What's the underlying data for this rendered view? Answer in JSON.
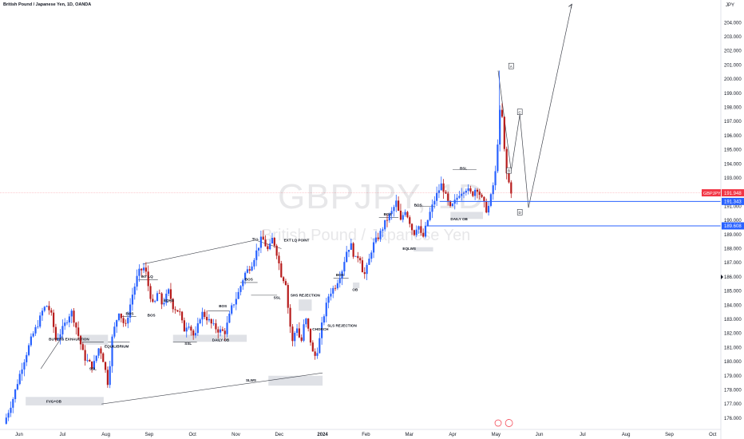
{
  "header": {
    "title": "British Pound / Japanese Yen, 1D, OANDA",
    "currency": "JPY"
  },
  "watermark": {
    "symbol": "GBPJPY, 1D",
    "name": "British Pound / Japanese Yen"
  },
  "colors": {
    "up": "#2962ff",
    "down": "#b71c1c",
    "level": "#2962ff",
    "current": "#f23645",
    "zone": "#d1d4dc",
    "line": "#131722"
  },
  "chart_data": {
    "type": "candlestick",
    "ylim": [
      175.2,
      205.6
    ],
    "yticks": [
      176,
      177,
      178,
      179,
      180,
      181,
      182,
      183,
      184,
      185,
      186,
      187,
      188,
      189,
      190,
      191,
      193,
      194,
      195,
      196,
      197,
      198,
      199,
      200,
      201,
      202,
      203,
      204
    ],
    "x_ticks": [
      {
        "label": "Jun",
        "m": 0
      },
      {
        "label": "Jul",
        "m": 1
      },
      {
        "label": "Aug",
        "m": 2
      },
      {
        "label": "Sep",
        "m": 3
      },
      {
        "label": "Oct",
        "m": 4
      },
      {
        "label": "Nov",
        "m": 5
      },
      {
        "label": "Dec",
        "m": 6
      },
      {
        "label": "2024",
        "m": 7
      },
      {
        "label": "Feb",
        "m": 8
      },
      {
        "label": "Mar",
        "m": 9
      },
      {
        "label": "Apr",
        "m": 10
      },
      {
        "label": "May",
        "m": 11
      },
      {
        "label": "Jun",
        "m": 12
      },
      {
        "label": "Jul",
        "m": 13
      },
      {
        "label": "Aug",
        "m": 14
      },
      {
        "label": "Sep",
        "m": 15
      },
      {
        "label": "Oct",
        "m": 16
      }
    ],
    "price_labels": [
      {
        "label": "GBPJPY",
        "value": "191.948",
        "price": 191.95,
        "color": "#f23645"
      },
      {
        "label": "",
        "value": "191.343",
        "price": 191.34,
        "color": "#2962ff"
      },
      {
        "label": "",
        "value": "189.608",
        "price": 189.61,
        "color": "#2962ff"
      }
    ],
    "path": [
      [
        -0.35,
        175.6
      ],
      [
        -0.15,
        177.3
      ],
      [
        0.05,
        179.5
      ],
      [
        0.3,
        181.8
      ],
      [
        0.45,
        182.8
      ],
      [
        0.55,
        183.7
      ],
      [
        0.65,
        184.0
      ],
      [
        0.75,
        183.2
      ],
      [
        0.85,
        181.5
      ],
      [
        1.0,
        182.3
      ],
      [
        1.2,
        183.6
      ],
      [
        1.3,
        182.6
      ],
      [
        1.5,
        180.3
      ],
      [
        1.7,
        179.6
      ],
      [
        1.85,
        181.1
      ],
      [
        1.95,
        180.0
      ],
      [
        2.05,
        178.4
      ],
      [
        2.15,
        181.8
      ],
      [
        2.3,
        183.6
      ],
      [
        2.45,
        182.4
      ],
      [
        2.6,
        184.6
      ],
      [
        2.75,
        186.3
      ],
      [
        2.9,
        186.7
      ],
      [
        3.0,
        185.0
      ],
      [
        3.1,
        183.8
      ],
      [
        3.2,
        185.0
      ],
      [
        3.3,
        184.0
      ],
      [
        3.45,
        185.0
      ],
      [
        3.55,
        183.9
      ],
      [
        3.7,
        183.5
      ],
      [
        3.8,
        182.2
      ],
      [
        3.9,
        182.8
      ],
      [
        4.05,
        181.6
      ],
      [
        4.2,
        183.5
      ],
      [
        4.3,
        183.2
      ],
      [
        4.45,
        182.6
      ],
      [
        4.6,
        182.2
      ],
      [
        4.75,
        182.1
      ],
      [
        4.9,
        183.8
      ],
      [
        5.05,
        184.8
      ],
      [
        5.2,
        186.2
      ],
      [
        5.35,
        186.8
      ],
      [
        5.5,
        188.0
      ],
      [
        5.6,
        188.8
      ],
      [
        5.75,
        187.8
      ],
      [
        5.85,
        188.8
      ],
      [
        5.95,
        187.6
      ],
      [
        6.05,
        186.1
      ],
      [
        6.15,
        185.6
      ],
      [
        6.2,
        183.9
      ],
      [
        6.3,
        181.3
      ],
      [
        6.4,
        182.6
      ],
      [
        6.5,
        181.2
      ],
      [
        6.6,
        183.2
      ],
      [
        6.7,
        181.8
      ],
      [
        6.8,
        180.2
      ],
      [
        6.9,
        181.0
      ],
      [
        7.0,
        182.9
      ],
      [
        7.15,
        184.8
      ],
      [
        7.3,
        185.4
      ],
      [
        7.45,
        186.5
      ],
      [
        7.55,
        187.8
      ],
      [
        7.65,
        188.3
      ],
      [
        7.75,
        187.2
      ],
      [
        7.85,
        187.6
      ],
      [
        7.95,
        186.0
      ],
      [
        8.05,
        186.9
      ],
      [
        8.15,
        188.2
      ],
      [
        8.3,
        188.9
      ],
      [
        8.45,
        189.9
      ],
      [
        8.6,
        190.6
      ],
      [
        8.7,
        191.3
      ],
      [
        8.8,
        189.9
      ],
      [
        8.9,
        190.8
      ],
      [
        9.0,
        190.0
      ],
      [
        9.1,
        189.0
      ],
      [
        9.2,
        189.8
      ],
      [
        9.3,
        188.6
      ],
      [
        9.45,
        190.3
      ],
      [
        9.6,
        191.6
      ],
      [
        9.75,
        192.6
      ],
      [
        9.85,
        191.6
      ],
      [
        9.95,
        190.8
      ],
      [
        10.05,
        191.3
      ],
      [
        10.15,
        191.9
      ],
      [
        10.3,
        192.3
      ],
      [
        10.45,
        191.8
      ],
      [
        10.55,
        192.4
      ],
      [
        10.7,
        191.3
      ],
      [
        10.8,
        190.6
      ],
      [
        10.9,
        191.9
      ],
      [
        11.0,
        193.6
      ],
      [
        11.08,
        197.7
      ],
      [
        11.15,
        197.2
      ],
      [
        11.22,
        193.6
      ],
      [
        11.28,
        192.9
      ],
      [
        11.34,
        192.1
      ],
      [
        11.38,
        191.95
      ]
    ],
    "levels": [
      {
        "price": 191.34,
        "from_m": 9.7,
        "to_m": 16.6
      },
      {
        "price": 189.61,
        "from_m": 9.4,
        "to_m": 16.6
      }
    ],
    "annotations": [
      {
        "text": "FVG+OB",
        "m": 0.8,
        "price": 177.1
      },
      {
        "text": "BUYERS EXHAUSTION",
        "m": 1.15,
        "price": 181.5
      },
      {
        "text": "SSL",
        "m": 1.7,
        "price": 179.4
      },
      {
        "text": "EQUILIBRIUM",
        "m": 2.25,
        "price": 181.0
      },
      {
        "text": "BOS",
        "m": 2.55,
        "price": 183.3
      },
      {
        "text": "INT LQ",
        "m": 2.95,
        "price": 185.95
      },
      {
        "text": "BOS",
        "m": 3.05,
        "price": 183.2
      },
      {
        "text": "EQHS",
        "m": 3.45,
        "price": 184.25
      },
      {
        "text": "SSL",
        "m": 3.9,
        "price": 181.2
      },
      {
        "text": "DAILY OB",
        "m": 4.65,
        "price": 181.45
      },
      {
        "text": "BOS",
        "m": 4.7,
        "price": 183.85
      },
      {
        "text": "BOS",
        "m": 5.3,
        "price": 185.75
      },
      {
        "text": "TLL",
        "m": 5.45,
        "price": 188.6
      },
      {
        "text": "EXT LQ POINT",
        "m": 6.4,
        "price": 188.5
      },
      {
        "text": "SSL",
        "m": 5.95,
        "price": 184.45
      },
      {
        "text": "SHS REJECTION",
        "m": 6.6,
        "price": 184.6
      },
      {
        "text": "CHORCH",
        "m": 6.95,
        "price": 182.2
      },
      {
        "text": "SLS REJECTION",
        "m": 7.45,
        "price": 182.45
      },
      {
        "text": "SLWS",
        "m": 5.35,
        "price": 178.6
      },
      {
        "text": "BOS",
        "m": 7.4,
        "price": 186.05
      },
      {
        "text": "OB",
        "m": 7.75,
        "price": 185.0
      },
      {
        "text": "BOS",
        "m": 8.5,
        "price": 190.35
      },
      {
        "text": "EQLWS",
        "m": 9.0,
        "price": 187.9
      },
      {
        "text": "BOS",
        "m": 9.2,
        "price": 191.0
      },
      {
        "text": "BSL",
        "m": 10.25,
        "price": 193.6
      },
      {
        "text": "DAILY OB",
        "m": 10.15,
        "price": 190.0
      }
    ],
    "boxes": [
      {
        "text": "A",
        "m": 11.35,
        "price": 200.9
      },
      {
        "text": "B",
        "m": 11.3,
        "price": 193.5
      },
      {
        "text": "C",
        "m": 11.55,
        "price": 197.65
      },
      {
        "text": "D",
        "m": 11.55,
        "price": 190.55
      }
    ]
  }
}
